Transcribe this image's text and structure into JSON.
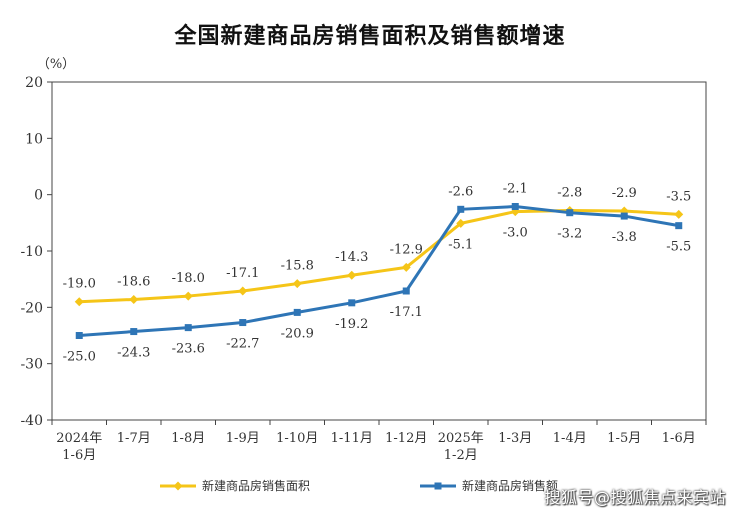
{
  "chart_data": {
    "type": "line",
    "title": "全国新建商品房销售面积及销售额增速",
    "ylabel": "（%）",
    "xlabel": "",
    "ylim": [
      -40,
      20
    ],
    "yticks": [
      "20",
      "10",
      "0",
      "-10",
      "-20",
      "-30",
      "-40"
    ],
    "yticks_values": [
      20,
      10,
      0,
      -10,
      -20,
      -30,
      -40
    ],
    "grid": false,
    "legend_position": "bottom",
    "categories": [
      [
        "2024年",
        "1-6月"
      ],
      [
        "1-7月"
      ],
      [
        "1-8月"
      ],
      [
        "1-9月"
      ],
      [
        "1-10月"
      ],
      [
        "1-11月"
      ],
      [
        "1-12月"
      ],
      [
        "2025年",
        "1-2月"
      ],
      [
        "1-3月"
      ],
      [
        "1-4月"
      ],
      [
        "1-5月"
      ],
      [
        "1-6月"
      ]
    ],
    "series": [
      {
        "name": "新建商品房销售面积",
        "color": "#F5C518",
        "marker": "diamond",
        "values": [
          -19.0,
          -18.6,
          -18.0,
          -17.1,
          -15.8,
          -14.3,
          -12.9,
          -5.1,
          -3.0,
          -2.8,
          -2.9,
          -3.5
        ],
        "labels": [
          "-19.0",
          "-18.6",
          "-18.0",
          "-17.1",
          "-15.8",
          "-14.3",
          "-12.9",
          "-5.1",
          "-3.0",
          "-2.8",
          "-2.9",
          "-3.5"
        ]
      },
      {
        "name": "新建商品房销售额",
        "color": "#2E75B6",
        "marker": "square",
        "values": [
          -25.0,
          -24.3,
          -23.6,
          -22.7,
          -20.9,
          -19.2,
          -17.1,
          -2.6,
          -2.1,
          -3.2,
          -3.8,
          -5.5
        ],
        "labels": [
          "-25.0",
          "-24.3",
          "-23.6",
          "-22.7",
          "-20.9",
          "-19.2",
          "-17.1",
          "-2.6",
          "-2.1",
          "-3.2",
          "-3.8",
          "-5.5"
        ]
      }
    ]
  },
  "watermark": "搜狐号@搜狐焦点来宾站"
}
